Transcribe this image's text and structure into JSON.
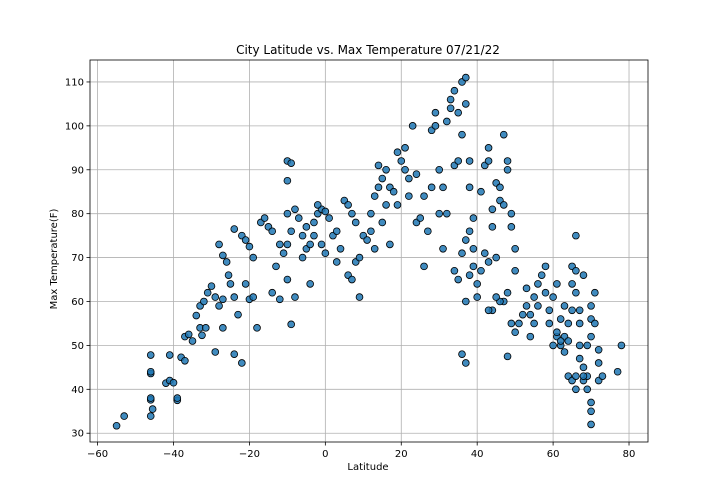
{
  "chart_data": {
    "type": "scatter",
    "title": "City Latitude vs. Max Temperature 07/21/22",
    "xlabel": "Latitude",
    "ylabel": "Max Temperature(F)",
    "xlim": [
      -62,
      85
    ],
    "ylim": [
      28,
      115
    ],
    "xticks": [
      -60,
      -40,
      -20,
      0,
      20,
      40,
      60,
      80
    ],
    "yticks": [
      30,
      40,
      50,
      60,
      70,
      80,
      90,
      100,
      110
    ],
    "grid": true,
    "marker_color": "#1f77b4",
    "marker_edge_color": "#000000",
    "points": [
      [
        -55,
        31.7
      ],
      [
        -53,
        33.9
      ],
      [
        -46,
        33.9
      ],
      [
        -45.5,
        35.5
      ],
      [
        -46,
        37.6
      ],
      [
        -46,
        38
      ],
      [
        -39,
        37.5
      ],
      [
        -39,
        38
      ],
      [
        -46,
        43.6
      ],
      [
        -46,
        44
      ],
      [
        -46,
        47.8
      ],
      [
        -42,
        41.4
      ],
      [
        -41,
        42
      ],
      [
        -40,
        41.5
      ],
      [
        -41,
        47.8
      ],
      [
        -38,
        47.3
      ],
      [
        -37,
        46.5
      ],
      [
        -37,
        52
      ],
      [
        -36,
        52.5
      ],
      [
        -35,
        51
      ],
      [
        -34,
        56.8
      ],
      [
        -33,
        54
      ],
      [
        -32.5,
        52.3
      ],
      [
        -31.5,
        54
      ],
      [
        -33,
        59
      ],
      [
        -32,
        60
      ],
      [
        -31,
        62
      ],
      [
        -30,
        63.5
      ],
      [
        -29,
        61
      ],
      [
        -28,
        59
      ],
      [
        -27,
        60.5
      ],
      [
        -29,
        48.5
      ],
      [
        -27,
        54
      ],
      [
        -24,
        48
      ],
      [
        -22,
        46
      ],
      [
        -23,
        57
      ],
      [
        -24,
        61
      ],
      [
        -25,
        64
      ],
      [
        -25.5,
        66
      ],
      [
        -26,
        69
      ],
      [
        -27,
        70.5
      ],
      [
        -28,
        73
      ],
      [
        -24,
        76.5
      ],
      [
        -22,
        75
      ],
      [
        -21,
        74
      ],
      [
        -20,
        72.5
      ],
      [
        -19,
        70
      ],
      [
        -21,
        64
      ],
      [
        -20,
        60.5
      ],
      [
        -19,
        61
      ],
      [
        -18,
        54
      ],
      [
        -17,
        78
      ],
      [
        -16,
        79
      ],
      [
        -15,
        77
      ],
      [
        -14,
        76
      ],
      [
        -13,
        68
      ],
      [
        -12,
        73
      ],
      [
        -11,
        71
      ],
      [
        -14,
        62
      ],
      [
        -12,
        60.5
      ],
      [
        -10,
        65
      ],
      [
        -9,
        54.8
      ],
      [
        -8,
        61
      ],
      [
        -10,
        73
      ],
      [
        -9,
        76
      ],
      [
        -10,
        80
      ],
      [
        -10,
        87.5
      ],
      [
        -10,
        92
      ],
      [
        -9,
        91.5
      ],
      [
        -8,
        81
      ],
      [
        -7,
        79
      ],
      [
        -6,
        75
      ],
      [
        -5,
        72
      ],
      [
        -4,
        73
      ],
      [
        -3,
        78
      ],
      [
        -2,
        80
      ],
      [
        -1,
        81
      ],
      [
        0,
        80.5
      ],
      [
        -5,
        77
      ],
      [
        -6,
        70
      ],
      [
        -4,
        64
      ],
      [
        -3,
        75
      ],
      [
        -2,
        82
      ],
      [
        -1,
        73
      ],
      [
        0,
        71
      ],
      [
        1,
        79
      ],
      [
        2,
        75
      ],
      [
        3,
        76
      ],
      [
        4,
        72
      ],
      [
        3,
        69
      ],
      [
        5,
        83
      ],
      [
        6,
        82
      ],
      [
        7,
        80
      ],
      [
        8,
        78
      ],
      [
        6,
        66
      ],
      [
        7,
        65
      ],
      [
        8,
        69
      ],
      [
        9,
        70
      ],
      [
        9,
        61
      ],
      [
        10,
        75
      ],
      [
        11,
        74
      ],
      [
        12,
        76
      ],
      [
        13,
        72
      ],
      [
        12,
        80
      ],
      [
        13,
        84
      ],
      [
        14,
        86
      ],
      [
        14,
        91
      ],
      [
        15,
        88
      ],
      [
        16,
        90
      ],
      [
        17,
        86
      ],
      [
        15,
        78
      ],
      [
        16,
        82
      ],
      [
        17,
        73
      ],
      [
        18,
        85
      ],
      [
        19,
        82
      ],
      [
        19,
        94
      ],
      [
        20,
        92
      ],
      [
        21,
        95
      ],
      [
        21,
        90
      ],
      [
        22,
        84
      ],
      [
        22,
        88
      ],
      [
        23,
        100
      ],
      [
        24,
        89
      ],
      [
        24,
        78
      ],
      [
        25,
        79
      ],
      [
        26,
        84
      ],
      [
        26,
        68
      ],
      [
        27,
        76
      ],
      [
        28,
        86
      ],
      [
        28,
        99
      ],
      [
        29,
        100
      ],
      [
        29,
        103
      ],
      [
        30,
        90
      ],
      [
        30,
        80
      ],
      [
        31,
        72
      ],
      [
        31,
        86
      ],
      [
        32,
        80
      ],
      [
        32,
        101
      ],
      [
        33,
        104
      ],
      [
        33,
        106
      ],
      [
        34,
        108
      ],
      [
        34,
        91
      ],
      [
        35,
        103
      ],
      [
        35,
        92
      ],
      [
        36,
        98
      ],
      [
        36,
        110
      ],
      [
        37,
        111
      ],
      [
        37,
        105
      ],
      [
        38,
        86
      ],
      [
        38,
        92
      ],
      [
        39,
        79
      ],
      [
        39,
        72
      ],
      [
        35,
        65
      ],
      [
        34,
        67
      ],
      [
        36,
        71
      ],
      [
        37,
        74
      ],
      [
        38,
        76
      ],
      [
        39,
        68
      ],
      [
        40,
        64
      ],
      [
        38,
        66
      ],
      [
        37,
        60
      ],
      [
        36,
        48
      ],
      [
        37,
        46
      ],
      [
        40,
        61
      ],
      [
        41,
        67
      ],
      [
        42,
        71
      ],
      [
        43,
        69
      ],
      [
        41,
        85
      ],
      [
        42,
        91
      ],
      [
        43,
        92
      ],
      [
        43,
        95
      ],
      [
        44,
        81
      ],
      [
        44,
        77
      ],
      [
        45,
        70
      ],
      [
        45,
        87
      ],
      [
        46,
        86
      ],
      [
        46,
        83
      ],
      [
        47,
        82
      ],
      [
        47,
        98
      ],
      [
        48,
        92
      ],
      [
        48,
        90
      ],
      [
        49,
        77
      ],
      [
        49,
        80
      ],
      [
        50,
        72
      ],
      [
        50,
        67
      ],
      [
        48,
        62
      ],
      [
        47,
        60
      ],
      [
        46,
        60
      ],
      [
        45,
        61
      ],
      [
        44,
        58
      ],
      [
        43,
        58
      ],
      [
        48,
        47.5
      ],
      [
        49,
        55
      ],
      [
        50,
        53
      ],
      [
        51,
        55
      ],
      [
        52,
        57
      ],
      [
        53,
        59
      ],
      [
        53,
        63
      ],
      [
        54,
        52
      ],
      [
        54,
        57
      ],
      [
        55,
        55
      ],
      [
        55,
        61
      ],
      [
        56,
        59
      ],
      [
        56,
        64
      ],
      [
        57,
        66
      ],
      [
        58,
        68
      ],
      [
        58,
        62
      ],
      [
        59,
        58
      ],
      [
        59,
        55
      ],
      [
        60,
        50
      ],
      [
        60,
        61
      ],
      [
        61,
        52
      ],
      [
        61,
        64
      ],
      [
        62,
        56
      ],
      [
        62,
        50
      ],
      [
        63,
        52
      ],
      [
        63,
        48.5
      ],
      [
        64,
        51
      ],
      [
        64,
        55
      ],
      [
        65,
        58
      ],
      [
        65,
        64
      ],
      [
        65,
        68
      ],
      [
        66,
        75
      ],
      [
        66,
        62
      ],
      [
        67,
        55
      ],
      [
        67,
        50
      ],
      [
        67,
        47
      ],
      [
        68,
        45
      ],
      [
        68,
        42
      ],
      [
        69,
        43
      ],
      [
        69,
        50
      ],
      [
        70,
        52
      ],
      [
        70,
        56
      ],
      [
        70,
        59
      ],
      [
        71,
        55
      ],
      [
        71,
        62
      ],
      [
        72,
        49
      ],
      [
        72,
        46
      ],
      [
        69,
        40
      ],
      [
        70,
        37
      ],
      [
        70,
        35
      ],
      [
        70,
        32
      ],
      [
        68,
        43
      ],
      [
        64,
        43
      ],
      [
        65,
        42
      ],
      [
        66,
        43
      ],
      [
        66,
        40
      ],
      [
        72,
        42
      ],
      [
        73,
        43
      ],
      [
        77,
        44
      ],
      [
        78,
        50
      ],
      [
        67,
        58
      ],
      [
        68,
        66
      ],
      [
        66,
        67
      ],
      [
        63,
        59
      ],
      [
        62,
        51
      ],
      [
        61,
        53
      ]
    ]
  }
}
